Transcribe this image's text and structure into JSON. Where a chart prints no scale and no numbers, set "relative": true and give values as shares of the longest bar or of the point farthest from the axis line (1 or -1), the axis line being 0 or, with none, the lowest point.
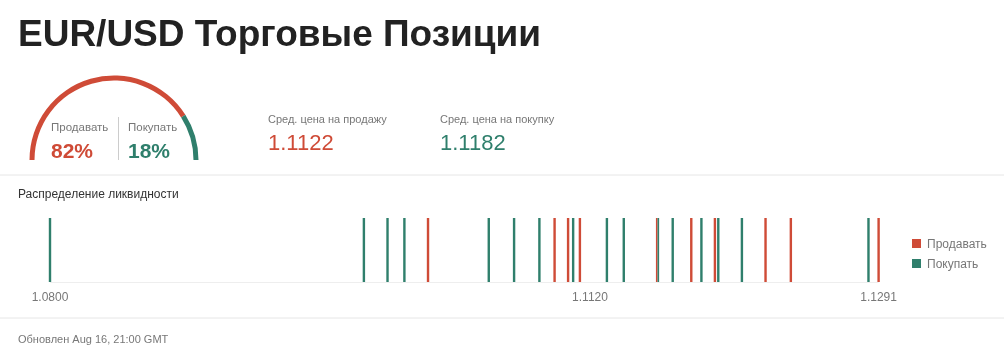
{
  "chart_data": [
    {
      "type": "donut",
      "title": "EUR/USD Торговые Позиции",
      "categories": [
        "Продавать",
        "Покупать"
      ],
      "values": [
        82,
        18
      ],
      "colors": [
        "#cf4b37",
        "#2f7f6c"
      ],
      "value_labels": [
        "82%",
        "18%"
      ]
    },
    {
      "type": "other",
      "annotations": [
        "Сред. цена на продажу",
        "1.1122",
        "Сред. цена на покупку",
        "1.1182"
      ]
    },
    {
      "type": "bar",
      "title": "Распределение ликвидности",
      "relative": true,
      "legend": "right",
      "xlim": [
        1.08,
        1.1291
      ],
      "xticks": [
        {
          "value": 1.08,
          "label": "1.0800"
        },
        {
          "value": 1.112,
          "label": "1.1120"
        },
        1.1291
      ],
      "series": [
        {
          "name": "Продавать",
          "color": "#cf4b37",
          "x": [
            1.1024,
            1.1099,
            1.1107,
            1.1114,
            1.116,
            1.118,
            1.1194,
            1.1224,
            1.1239,
            1.1291
          ],
          "values": [
            1,
            1,
            1,
            1,
            1,
            1,
            1,
            1,
            1,
            1
          ]
        },
        {
          "name": "Покупать",
          "color": "#2f7f6c",
          "x": [
            1.08,
            1.0986,
            1.1,
            1.101,
            1.106,
            1.1075,
            1.109,
            1.111,
            1.113,
            1.114,
            1.116,
            1.1169,
            1.1186,
            1.1196,
            1.121,
            1.1285
          ],
          "values": [
            1,
            1,
            1,
            1,
            1,
            1,
            1,
            1,
            1,
            1,
            1,
            1,
            1,
            1,
            1,
            1
          ]
        }
      ],
      "annotations": [
        "Обновлен Aug 16, 21:00 GMT"
      ]
    }
  ]
}
